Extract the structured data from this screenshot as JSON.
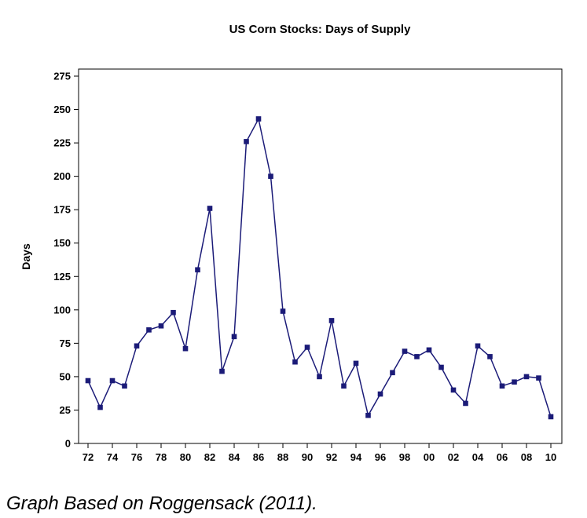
{
  "chart_data": {
    "type": "line",
    "title": "US Corn Stocks: Days of Supply",
    "xlabel": "",
    "ylabel": "Days",
    "ylim": [
      0,
      275
    ],
    "ytick_step": 25,
    "x_tick_labels": [
      "72",
      "74",
      "76",
      "78",
      "80",
      "82",
      "84",
      "86",
      "88",
      "90",
      "92",
      "94",
      "96",
      "98",
      "00",
      "02",
      "04",
      "06",
      "08",
      "10"
    ],
    "x": [
      1972,
      1973,
      1974,
      1975,
      1976,
      1977,
      1978,
      1979,
      1980,
      1981,
      1982,
      1983,
      1984,
      1985,
      1986,
      1987,
      1988,
      1989,
      1990,
      1991,
      1992,
      1993,
      1994,
      1995,
      1996,
      1997,
      1998,
      1999,
      2000,
      2001,
      2002,
      2003,
      2004,
      2005,
      2006,
      2007,
      2008,
      2009,
      2010
    ],
    "values": [
      47,
      27,
      47,
      43,
      73,
      85,
      88,
      98,
      71,
      130,
      176,
      54,
      80,
      226,
      243,
      200,
      99,
      61,
      72,
      50,
      92,
      43,
      60,
      21,
      37,
      53,
      69,
      65,
      70,
      57,
      40,
      30,
      73,
      65,
      43,
      46,
      50,
      49,
      20
    ],
    "series_name": "Days of Supply",
    "series_color": "#1b1b78",
    "marker": "square",
    "grid": false,
    "legend_position": "none"
  },
  "caption": "Graph Based on Roggensack (2011)."
}
